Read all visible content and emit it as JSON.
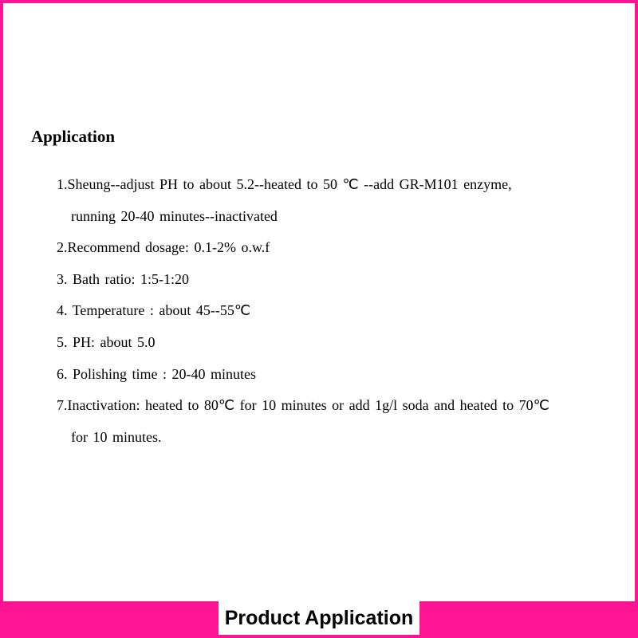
{
  "colors": {
    "frame_border": "#ff1493",
    "footer_bg": "#ff1493",
    "text": "#000000",
    "background": "#ffffff"
  },
  "typography": {
    "body_font": "Times New Roman",
    "footer_font": "Arial",
    "heading_size_pt": 21,
    "item_size_pt": 18,
    "footer_size_pt": 25
  },
  "heading": "Application",
  "items": [
    {
      "line1": "1.Sheung--adjust PH to about 5.2--heated to 50 ℃  --add GR-M101 enzyme,",
      "line2": "running 20-40 minutes--inactivated"
    },
    {
      "line1": "2.Recommend dosage: 0.1-2% o.w.f"
    },
    {
      "line1": "3. Bath ratio: 1:5-1:20"
    },
    {
      "line1": "4. Temperature : about 45--55℃"
    },
    {
      "line1": "5. PH: about 5.0"
    },
    {
      "line1": "6. Polishing time : 20-40 minutes"
    },
    {
      "line1": "7.Inactivation: heated to 80℃  for 10 minutes or add 1g/l soda and heated to 70℃",
      "line2": "for 10 minutes."
    }
  ],
  "footer_label": "Product Application"
}
